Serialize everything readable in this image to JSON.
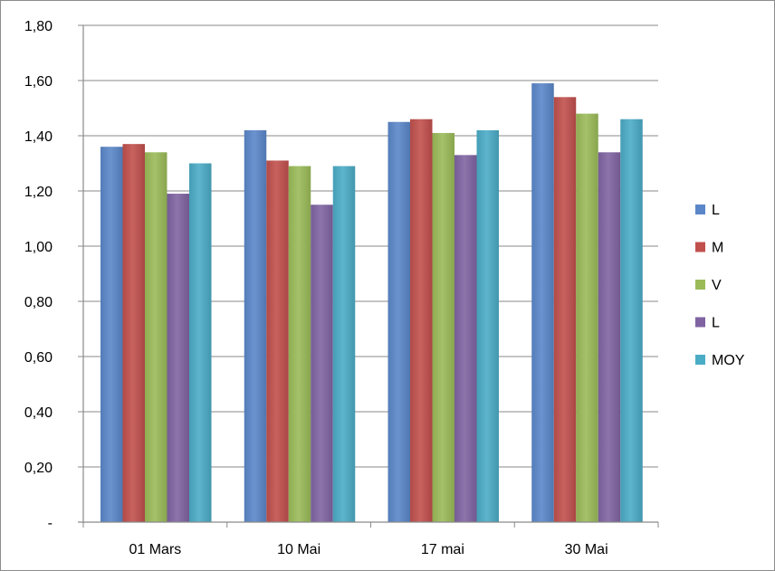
{
  "chart_data": {
    "type": "bar",
    "title": "",
    "xlabel": "",
    "ylabel": "",
    "categories": [
      "01 Mars",
      "10 Mai",
      "17 mai",
      "30 Mai"
    ],
    "y_ticks": [
      "-",
      "0,20",
      "0,40",
      "0,60",
      "0,80",
      "1,00",
      "1,20",
      "1,40",
      "1,60",
      "1,80"
    ],
    "ylim": [
      0,
      1.8
    ],
    "grid": true,
    "legend_position": "right",
    "series": [
      {
        "name": "L",
        "color": "#5b87c9",
        "values": [
          1.36,
          1.42,
          1.45,
          1.59
        ]
      },
      {
        "name": "M",
        "color": "#c1504d",
        "values": [
          1.37,
          1.31,
          1.46,
          1.54
        ]
      },
      {
        "name": "V",
        "color": "#9bbb59",
        "values": [
          1.34,
          1.29,
          1.41,
          1.48
        ]
      },
      {
        "name": "L",
        "color": "#8064a2",
        "values": [
          1.19,
          1.15,
          1.33,
          1.34
        ]
      },
      {
        "name": "MOY",
        "color": "#4bacc6",
        "values": [
          1.3,
          1.29,
          1.42,
          1.46
        ]
      }
    ]
  }
}
